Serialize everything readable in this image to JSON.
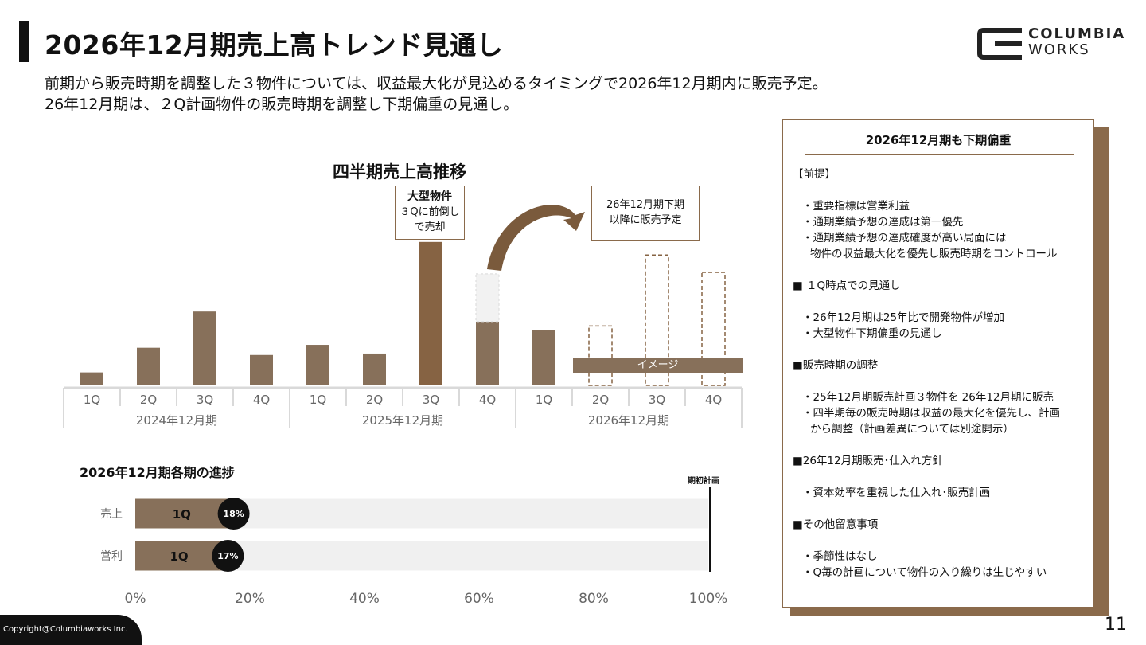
{
  "header": {
    "title": "2026年12月期売上高トレンド見通し",
    "subtitle_line1": "前期から販売時期を調整した３物件については、収益最大化が見込めるタイミングで2026年12月期内に販売予定。",
    "subtitle_line2": "26年12月期は、２Q計画物件の販売時期を調整し下期偏重の見通し。"
  },
  "logo": {
    "line1": "COLUMBIA",
    "line2": "WORKS"
  },
  "colors": {
    "brown": "#87705a",
    "dark_brown": "#866343",
    "accent_border": "#8a6a4b",
    "track": "#f0f0f0"
  },
  "chart_data": [
    {
      "type": "bar",
      "title": "四半期売上高推移",
      "categories": [
        "1Q",
        "2Q",
        "3Q",
        "4Q",
        "1Q",
        "2Q",
        "3Q",
        "4Q",
        "1Q",
        "2Q",
        "3Q",
        "4Q"
      ],
      "groups": [
        "2024年12月期",
        "2025年12月期",
        "2026年12月期"
      ],
      "values": [
        9,
        26,
        51,
        21,
        28,
        22,
        99,
        44,
        38,
        41,
        90,
        78
      ],
      "bar_styles": [
        "actual",
        "actual",
        "actual",
        "actual",
        "actual",
        "actual",
        "highlight",
        "actual_shifted",
        "actual",
        "forecast",
        "forecast",
        "forecast"
      ],
      "shifted_portion": {
        "index": 7,
        "ghost_value": 33
      },
      "annotations": {
        "big_property_title": "大型物件",
        "big_property_line1": "３Qに前倒し",
        "big_property_line2": "で売却",
        "later_line1": "26年12月期下期",
        "later_line2": "以降に販売予定",
        "image_label": "イメージ"
      }
    },
    {
      "type": "bar",
      "orientation": "horizontal",
      "title": "2026年12月期各期の進捗",
      "categories": [
        "売上",
        "営利"
      ],
      "series": [
        {
          "values": [
            18,
            17
          ]
        }
      ],
      "bar_labels": [
        "1Q",
        "1Q"
      ],
      "value_labels": [
        "18%",
        "17%"
      ],
      "xlim": [
        0,
        100
      ],
      "x_ticks": [
        "0%",
        "20%",
        "40%",
        "60%",
        "80%",
        "100%"
      ],
      "reference_line": {
        "value": 100,
        "label": "期初計画"
      }
    }
  ],
  "panel": {
    "heading": "2026年12月期も下期偏重",
    "sec1": "【前提】",
    "sec1_items": [
      "・重要指標は営業利益",
      "・通期業績予想の達成は第一優先",
      "・通期業績予想の達成確度が高い局面には"
    ],
    "sec1_cont": "物件の収益最大化を優先し販売時期をコントロール",
    "sec2": "■ １Q時点での見通し",
    "sec2_items": [
      "・26年12月期は25年比で開発物件が増加",
      "・大型物件下期偏重の見通し"
    ],
    "sec3": "■販売時期の調整",
    "sec3_items": [
      "・25年12月期販売計画３物件を 26年12月期に販売",
      "・四半期毎の販売時期は収益の最大化を優先し、計画"
    ],
    "sec3_cont": "から調整（計画差異については別途開示）",
    "sec4": "■26年12月期販売･仕入れ方針",
    "sec4_items": [
      "・資本効率を重視した仕入れ･販売計画"
    ],
    "sec5": "■その他留意事項",
    "sec5_items": [
      "・季節性はなし",
      "・Q毎の計画について物件の入り繰りは生じやすい"
    ]
  },
  "footer": {
    "copyright": "Copyright@Columbiaworks Inc.",
    "page": "11"
  }
}
